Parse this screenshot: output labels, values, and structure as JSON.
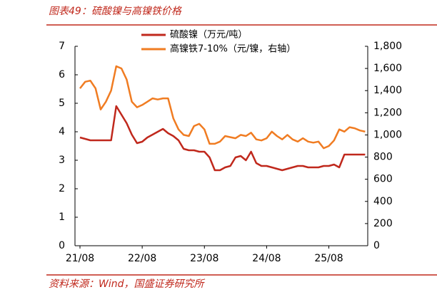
{
  "chart_data": {
    "type": "line",
    "title": "图表49：硫酸镍与高镍铁价格",
    "source": "资料来源：Wind，国盛证券研究所",
    "categories": [
      "21/08",
      null,
      null,
      null,
      null,
      null,
      null,
      null,
      null,
      null,
      null,
      null,
      "22/08",
      null,
      null,
      null,
      null,
      null,
      null,
      null,
      null,
      null,
      null,
      null,
      "23/08",
      null,
      null,
      null,
      null,
      null,
      null,
      null,
      null,
      null,
      null,
      null,
      "24/08",
      null,
      null,
      null,
      null,
      null,
      null,
      null,
      null,
      null,
      null,
      null,
      "25/08",
      null,
      null,
      null,
      null,
      null,
      null,
      null
    ],
    "series": [
      {
        "name": "硫酸镍（万元/吨）",
        "color": "#c0281c",
        "values": [
          3.8,
          3.75,
          3.7,
          3.7,
          3.7,
          3.7,
          3.7,
          4.9,
          4.6,
          4.3,
          3.9,
          3.6,
          3.65,
          3.8,
          3.9,
          4.0,
          4.1,
          3.95,
          3.85,
          3.7,
          3.4,
          3.35,
          3.35,
          3.3,
          3.3,
          3.1,
          2.65,
          2.65,
          2.75,
          2.8,
          3.1,
          3.15,
          3.0,
          3.3,
          2.9,
          2.8,
          2.8,
          2.75,
          2.7,
          2.65,
          2.7,
          2.75,
          2.8,
          2.8,
          2.75,
          2.75,
          2.75,
          2.8,
          2.8,
          2.85,
          2.75,
          3.2,
          3.2,
          3.2,
          3.2,
          3.2
        ]
      },
      {
        "name": "高镍铁7-10%（元/镍，右轴）",
        "color": "#f07c22",
        "axis": "y2",
        "values": [
          1420,
          1480,
          1490,
          1420,
          1230,
          1300,
          1400,
          1620,
          1600,
          1500,
          1300,
          1250,
          1270,
          1300,
          1330,
          1320,
          1330,
          1330,
          1150,
          1050,
          1000,
          990,
          1080,
          1100,
          1050,
          920,
          920,
          940,
          990,
          980,
          970,
          1000,
          990,
          1020,
          960,
          950,
          970,
          1030,
          990,
          960,
          1000,
          960,
          940,
          970,
          940,
          930,
          940,
          880,
          900,
          950,
          1050,
          1030,
          1070,
          1060,
          1040,
          1030
        ]
      }
    ],
    "ylim": [
      0,
      7
    ],
    "yticks": [
      0,
      1,
      2,
      3,
      4,
      5,
      6,
      7
    ],
    "y2lim": [
      0,
      1800
    ],
    "y2ticks": [
      0,
      200,
      400,
      600,
      800,
      {
        "value": 1000,
        "label": "1,000"
      },
      {
        "value": 1200,
        "label": "1,200"
      },
      {
        "value": 1400,
        "label": "1,400"
      },
      {
        "value": 1600,
        "label": "1,600"
      },
      {
        "value": 1800,
        "label": "1,800"
      }
    ]
  }
}
